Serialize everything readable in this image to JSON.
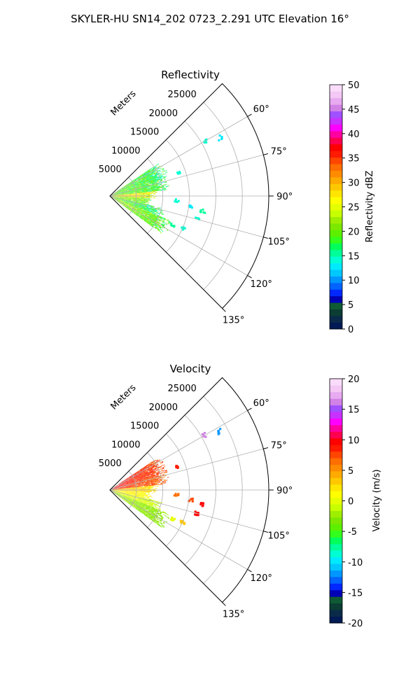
{
  "suptitle": "SKYLER-HU  SN14_202  0723_2.291 UTC Elevation 16°",
  "chart_data": [
    {
      "type": "polar-sector-radar",
      "title": "Reflectivity",
      "r_axis_label": "Meters",
      "r_ticks": [
        5000,
        10000,
        15000,
        20000,
        25000
      ],
      "r_max": 30000,
      "theta_range_deg": [
        45,
        135
      ],
      "theta_ticks_deg": [
        60,
        75,
        90,
        105,
        120,
        135
      ],
      "theta_tick_labels": [
        "60°",
        "75°",
        "90°",
        "105°",
        "120°",
        "135°"
      ],
      "grid": true,
      "data_extent_m": 14000,
      "colorbar": {
        "label": "Reflectivity dBZ",
        "min": 0,
        "max": 50,
        "ticks": [
          0,
          5,
          10,
          15,
          20,
          25,
          30,
          35,
          40,
          45,
          50
        ],
        "colors": [
          "#001a55",
          "#0a2a4a",
          "#0b3d33",
          "#0f5a34",
          "#0000b4",
          "#0028ff",
          "#0064ff",
          "#0096ff",
          "#00c8ff",
          "#00eaff",
          "#00ffd2",
          "#00ff9a",
          "#00ff5a",
          "#34ff1c",
          "#5cf000",
          "#7ce800",
          "#9eee00",
          "#c8ff00",
          "#e6ff00",
          "#ffff00",
          "#ffe600",
          "#ffc800",
          "#ffaa00",
          "#ff8c00",
          "#ff6e00",
          "#ff4600",
          "#ff1a00",
          "#ff0000",
          "#ff0050",
          "#ff00a0",
          "#ff00ff",
          "#c832ff",
          "#a050ff",
          "#d282e6",
          "#e8aaf0",
          "#f4c8f5",
          "#fadcfa"
        ]
      },
      "regions": [
        {
          "theta": [
            56,
            73
          ],
          "r": [
            0,
            11500
          ],
          "v": [
            13,
            24
          ]
        },
        {
          "theta": [
            73,
            84
          ],
          "r": [
            0,
            11200
          ],
          "v": [
            14,
            24
          ]
        },
        {
          "theta": [
            84,
            93
          ],
          "r": [
            0,
            9000
          ],
          "v": [
            20,
            34
          ]
        },
        {
          "theta": [
            93,
            103
          ],
          "r": [
            0,
            8000
          ],
          "v": [
            16,
            26
          ]
        },
        {
          "theta": [
            103,
            112
          ],
          "r": [
            0,
            10500
          ],
          "v": [
            12,
            24
          ]
        },
        {
          "theta": [
            112,
            126
          ],
          "r": [
            0,
            12500
          ],
          "v": [
            15,
            26
          ]
        }
      ],
      "scatter": [
        {
          "theta": 60,
          "r": 20800,
          "v": 14
        },
        {
          "theta": 62,
          "r": 23500,
          "v": 13
        },
        {
          "theta": 71,
          "r": 13500,
          "v": 14
        },
        {
          "theta": 94,
          "r": 12600,
          "v": 14
        },
        {
          "theta": 97,
          "r": 15500,
          "v": 13
        },
        {
          "theta": 99,
          "r": 17800,
          "v": 15
        },
        {
          "theta": 105,
          "r": 17000,
          "v": 14
        },
        {
          "theta": 114,
          "r": 15000,
          "v": 14
        },
        {
          "theta": 115,
          "r": 13000,
          "v": 15
        }
      ]
    },
    {
      "type": "polar-sector-radar",
      "title": "Velocity",
      "r_axis_label": "Meters",
      "r_ticks": [
        5000,
        10000,
        15000,
        20000,
        25000
      ],
      "r_max": 30000,
      "theta_range_deg": [
        45,
        135
      ],
      "theta_ticks_deg": [
        60,
        75,
        90,
        105,
        120,
        135
      ],
      "theta_tick_labels": [
        "60°",
        "75°",
        "90°",
        "105°",
        "120°",
        "135°"
      ],
      "grid": true,
      "data_extent_m": 14000,
      "colorbar": {
        "label": "Velocity (m/s)",
        "min": -20,
        "max": 20,
        "ticks": [
          -20,
          -15,
          -10,
          -5,
          0,
          5,
          10,
          15,
          20
        ],
        "colors": [
          "#001a55",
          "#0a2a4a",
          "#0b3d33",
          "#0f5a34",
          "#0000b4",
          "#0028ff",
          "#0064ff",
          "#0096ff",
          "#00c8ff",
          "#00eaff",
          "#00ffd2",
          "#00ff9a",
          "#00ff5a",
          "#34ff1c",
          "#5cf000",
          "#7ce800",
          "#9eee00",
          "#c8ff00",
          "#e6ff00",
          "#ffff00",
          "#ffe600",
          "#ffc800",
          "#ffaa00",
          "#ff8c00",
          "#ff6e00",
          "#ff4600",
          "#ff1a00",
          "#ff0000",
          "#ff0050",
          "#ff00a0",
          "#ff00ff",
          "#c832ff",
          "#a050ff",
          "#d282e6",
          "#e8aaf0",
          "#f4c8f5",
          "#fadcfa"
        ]
      },
      "regions": [
        {
          "theta": [
            56,
            73
          ],
          "r": [
            0,
            11500
          ],
          "v": [
            6,
            11
          ]
        },
        {
          "theta": [
            73,
            84
          ],
          "r": [
            0,
            11200
          ],
          "v": [
            5,
            10
          ]
        },
        {
          "theta": [
            84,
            93
          ],
          "r": [
            0,
            9000
          ],
          "v": [
            1,
            5
          ]
        },
        {
          "theta": [
            93,
            103
          ],
          "r": [
            0,
            8000
          ],
          "v": [
            0,
            3
          ]
        },
        {
          "theta": [
            103,
            112
          ],
          "r": [
            0,
            10500
          ],
          "v": [
            -3,
            2
          ]
        },
        {
          "theta": [
            112,
            126
          ],
          "r": [
            0,
            12500
          ],
          "v": [
            -4,
            -1
          ]
        }
      ],
      "scatter": [
        {
          "theta": 60,
          "r": 20800,
          "v": 16
        },
        {
          "theta": 62,
          "r": 23500,
          "v": -12
        },
        {
          "theta": 71,
          "r": 13500,
          "v": 9
        },
        {
          "theta": 94,
          "r": 12600,
          "v": 7
        },
        {
          "theta": 97,
          "r": 15500,
          "v": 8
        },
        {
          "theta": 99,
          "r": 17800,
          "v": 10
        },
        {
          "theta": 105,
          "r": 17000,
          "v": 10
        },
        {
          "theta": 114,
          "r": 15000,
          "v": 3
        },
        {
          "theta": 115,
          "r": 13000,
          "v": 0
        }
      ]
    }
  ]
}
